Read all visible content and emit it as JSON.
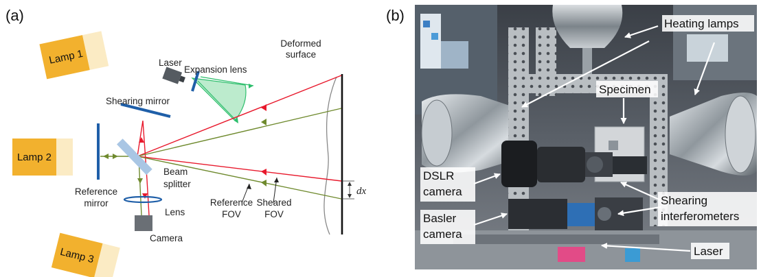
{
  "panel_a": {
    "label": "(a)",
    "lamps": [
      "Lamp 1",
      "Lamp 2",
      "Lamp 3"
    ],
    "components": {
      "laser": "Laser",
      "expansion_lens": "Expansion lens",
      "deformed_surface_line1": "Deformed",
      "deformed_surface_line2": "surface",
      "shearing_mirror": "Shearing mirror",
      "beam_splitter_line1": "Beam",
      "beam_splitter_line2": "splitter",
      "reference_mirror_line1": "Reference",
      "reference_mirror_line2": "mirror",
      "lens": "Lens",
      "camera": "Camera",
      "reference_fov_line1": "Reference",
      "reference_fov_line2": "FOV",
      "sheared_fov_line1": "Sheared",
      "sheared_fov_line2": "FOV",
      "shear_distance": "dx"
    },
    "colors": {
      "lamp_body": "#F2B12E",
      "lamp_face": "#FBEBC4",
      "mirror": "#1F5FA8",
      "beam_splitter": "#A9C6E4",
      "sheared_beam": "#E8192C",
      "reference_beam": "#6F8A2E",
      "laser_cone": "#9FE3B8",
      "laser_edge": "#2DBE6C"
    }
  },
  "panel_b": {
    "label": "(b)",
    "labels": {
      "heating_lamps": "Heating lamps",
      "specimen": "Specimen",
      "dslr_line1": "DSLR",
      "dslr_line2": "camera",
      "basler_line1": "Basler",
      "basler_line2": "camera",
      "shearing_line1": "Shearing",
      "shearing_line2": "interferometers",
      "laser": "Laser"
    }
  }
}
